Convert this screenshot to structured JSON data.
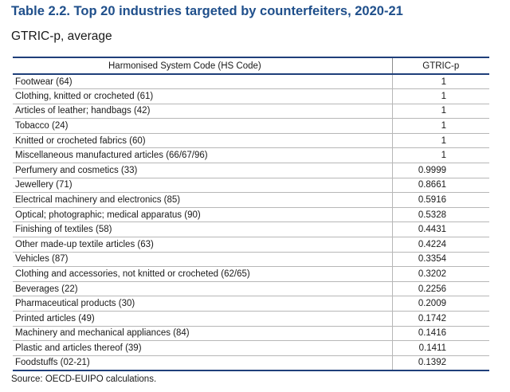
{
  "title": "Table 2.2. Top 20 industries targeted by counterfeiters, 2020-21",
  "subtitle": "GTRIC-p, average",
  "table": {
    "headers": [
      "Harmonised System Code (HS Code)",
      "GTRIC-p"
    ],
    "rows": [
      [
        "Footwear (64)",
        "1"
      ],
      [
        "Clothing, knitted or crocheted (61)",
        "1"
      ],
      [
        "Articles of leather; handbags (42)",
        "1"
      ],
      [
        "Tobacco (24)",
        "1"
      ],
      [
        "Knitted or crocheted fabrics (60)",
        "1"
      ],
      [
        "Miscellaneous manufactured articles (66/67/96)",
        "1"
      ],
      [
        "Perfumery and cosmetics (33)",
        "0.9999"
      ],
      [
        "Jewellery (71)",
        "0.8661"
      ],
      [
        "Electrical machinery and electronics (85)",
        "0.5916"
      ],
      [
        "Optical; photographic; medical apparatus (90)",
        "0.5328"
      ],
      [
        "Finishing of textiles (58)",
        "0.4431"
      ],
      [
        "Other made-up textile articles (63)",
        "0.4224"
      ],
      [
        "Vehicles (87)",
        "0.3354"
      ],
      [
        "Clothing and accessories, not knitted or crocheted (62/65)",
        "0.3202"
      ],
      [
        "Beverages (22)",
        "0.2256"
      ],
      [
        "Pharmaceutical products (30)",
        "0.2009"
      ],
      [
        "Printed articles (49)",
        "0.1742"
      ],
      [
        "Machinery and mechanical appliances (84)",
        "0.1416"
      ],
      [
        "Plastic and articles thereof (39)",
        "0.1411"
      ],
      [
        "Foodstuffs (02-21)",
        "0.1392"
      ]
    ]
  },
  "source": "Source: OECD-EUIPO calculations.",
  "colors": {
    "title": "#1f4f8b",
    "rule": "#1f3f7a",
    "grid": "#b7b7b7"
  }
}
